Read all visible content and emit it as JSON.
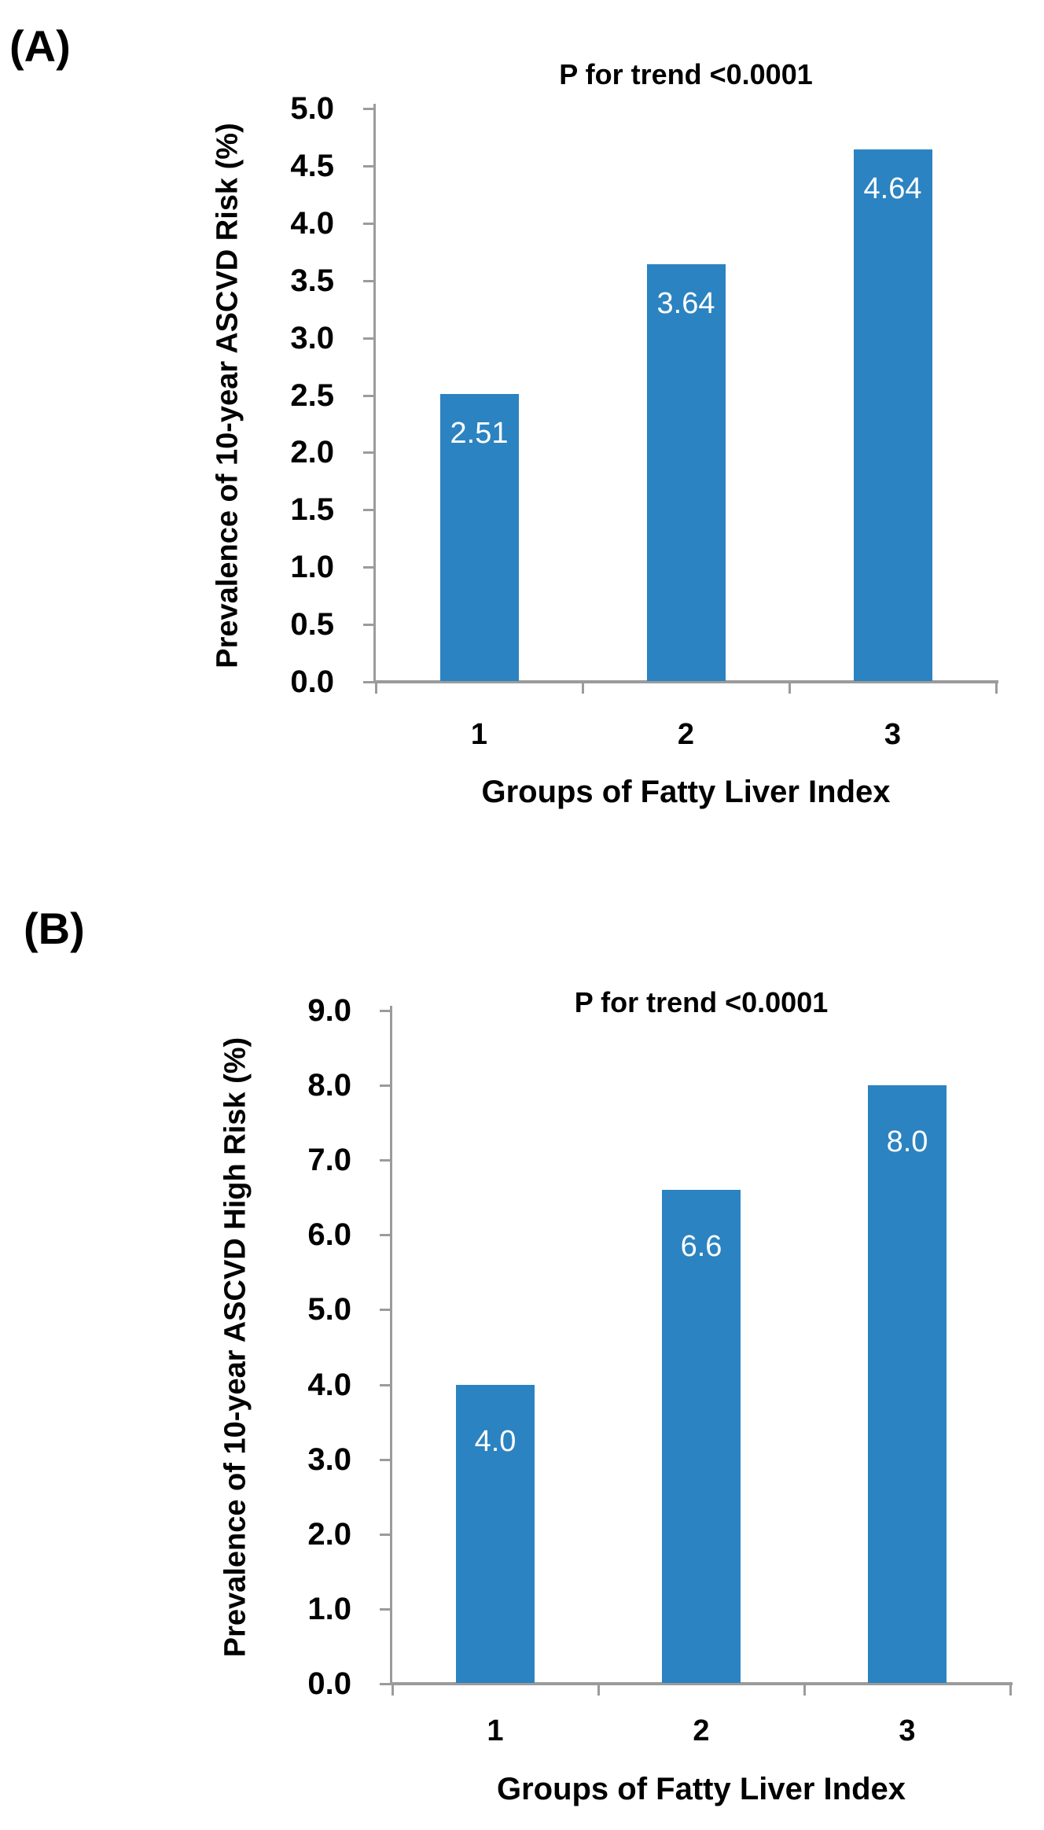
{
  "figure": {
    "background": "#ffffff",
    "panel_count": 2
  },
  "colors": {
    "bar": "#2b83c1",
    "axis_line": "#9b9b9b",
    "bar_value_label": "#ffffff",
    "text": "#000000"
  },
  "chart_data": [
    {
      "type": "bar",
      "panel_label": "(A)",
      "title": "P for trend <0.0001",
      "categories": [
        "1",
        "2",
        "3"
      ],
      "values": [
        2.51,
        3.64,
        4.64
      ],
      "value_labels": [
        "2.51",
        "3.64",
        "4.64"
      ],
      "xlabel": "Groups of Fatty Liver Index",
      "ylabel": "Prevalence of 10-year ASCVD Risk (%)",
      "ylim": [
        0.0,
        5.0
      ],
      "ytick_step": 0.5,
      "y_tick_labels": [
        "5.0",
        "4.5",
        "4.0",
        "3.5",
        "3.0",
        "2.5",
        "2.0",
        "1.5",
        "1.0",
        "0.5",
        "0.0"
      ],
      "grid": false,
      "legend": "none",
      "bar_label_position": "inside-top"
    },
    {
      "type": "bar",
      "panel_label": "(B)",
      "title": "P for trend <0.0001",
      "categories": [
        "1",
        "2",
        "3"
      ],
      "values": [
        4.0,
        6.6,
        8.0
      ],
      "value_labels": [
        "4.0",
        "6.6",
        "8.0"
      ],
      "xlabel": "Groups of Fatty Liver Index",
      "ylabel": "Prevalence of 10-year ASCVD High Risk (%)",
      "ylim": [
        0.0,
        9.0
      ],
      "ytick_step": 1.0,
      "y_tick_labels": [
        "9.0",
        "8.0",
        "7.0",
        "6.0",
        "5.0",
        "4.0",
        "3.0",
        "2.0",
        "1.0",
        "0.0"
      ],
      "grid": false,
      "legend": "none",
      "bar_label_position": "inside-top"
    }
  ]
}
